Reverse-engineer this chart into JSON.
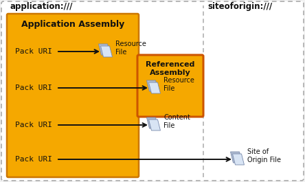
{
  "bg_color": "#f2f2f2",
  "outer_box_facecolor": "#ffffff",
  "outer_box_edge": "#aaaaaa",
  "app_box_color": "#f5a800",
  "app_box_edge": "#cc7700",
  "ref_box_color": "#f5a800",
  "ref_box_edge": "#cc5500",
  "label_app": "application:///",
  "label_site": "siteoforigin:///",
  "label_app_assembly": "Application Assembly",
  "label_ref_assembly": "Referenced\nAssembly",
  "pack_uris": [
    "Pack URI",
    "Pack URI",
    "Pack URI",
    "Pack URI"
  ],
  "resource_label1": "Resource\nFile",
  "resource_label2": "Resource\nFile",
  "content_label": "Content\nFile",
  "site_label": "Site of\nOrigin File",
  "arrow_color": "#111111",
  "text_color": "#111111"
}
